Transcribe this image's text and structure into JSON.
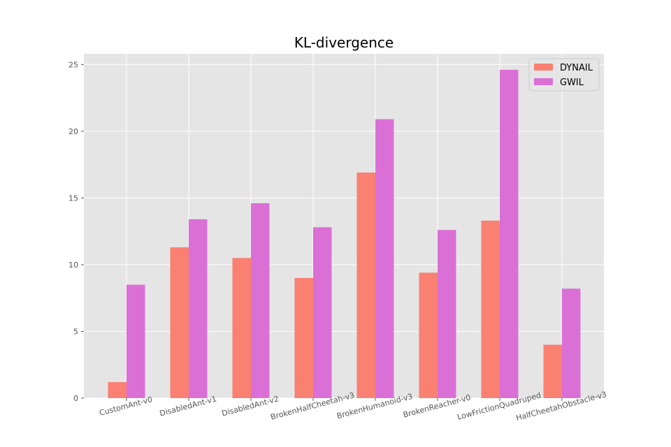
{
  "chart_data": {
    "type": "bar",
    "title": "KL-divergence",
    "xlabel": "",
    "ylabel": "",
    "categories": [
      "CustomAnt-v0",
      "DisabledAnt-v1",
      "DisabledAnt-v2",
      "BrokenHalfCheetah-v3",
      "BrokenHumanoid-v3",
      "BrokenReacher-v0",
      "LowFrictionQuadruped",
      "HalfCheetahObstacle-v3"
    ],
    "series": [
      {
        "name": "DYNAIL",
        "color": "#fa8072",
        "values": [
          1.2,
          11.3,
          10.5,
          9.0,
          16.9,
          9.4,
          13.3,
          4.0
        ]
      },
      {
        "name": "GWIL",
        "color": "#da70d6",
        "values": [
          8.5,
          13.4,
          14.6,
          12.8,
          20.9,
          12.6,
          24.6,
          8.2
        ]
      }
    ],
    "ylim": [
      0,
      25.8
    ],
    "yticks": [
      0,
      5,
      10,
      15,
      20,
      25
    ],
    "grid": true,
    "legend_position": "top-right",
    "background": "#e5e5e5",
    "grid_color": "#ffffff"
  }
}
